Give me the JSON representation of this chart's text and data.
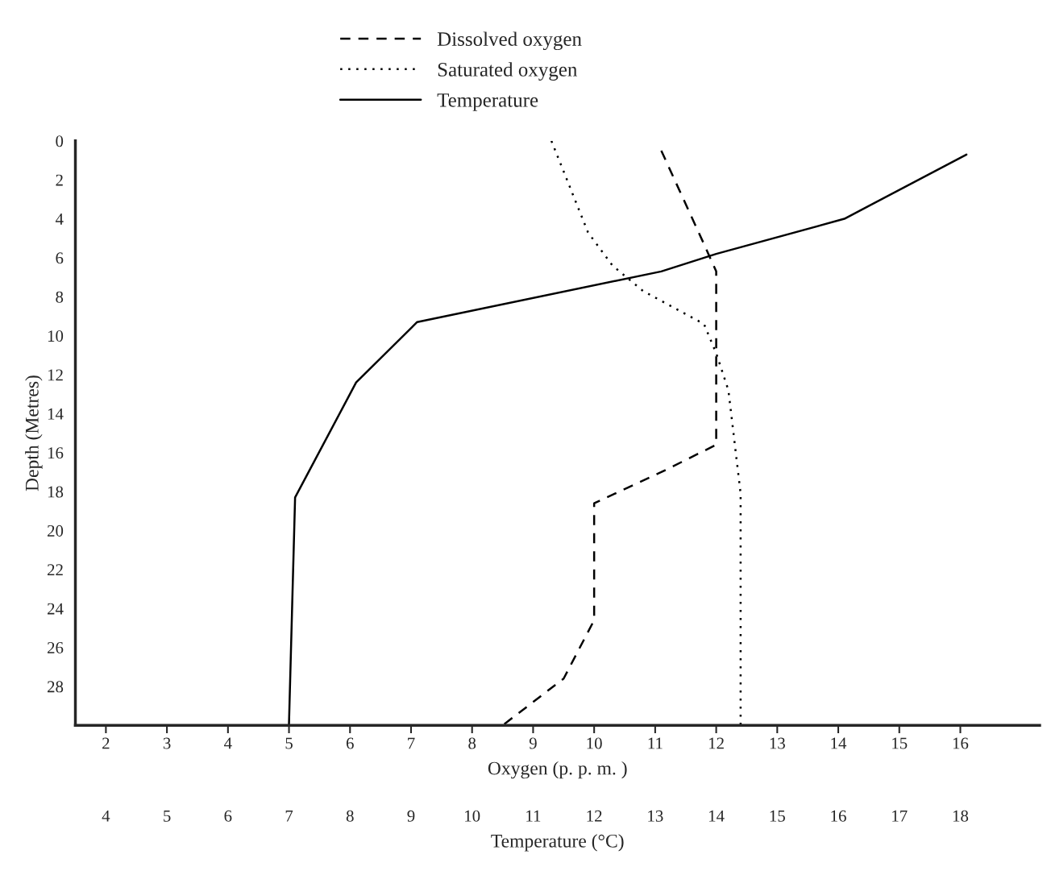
{
  "chart_data": {
    "type": "line",
    "xlabel": "Oxygen (p. p. m. )",
    "x2label": "Temperature (°C)",
    "ylabel": "Depth (Metres)",
    "xlim": [
      1.5,
      17.3
    ],
    "xticks": [
      2,
      3,
      4,
      5,
      6,
      7,
      8,
      9,
      10,
      11,
      12,
      13,
      14,
      15,
      16
    ],
    "x2lim": [
      3.5,
      19.3
    ],
    "x2ticks": [
      4,
      5,
      6,
      7,
      8,
      9,
      10,
      11,
      12,
      13,
      14,
      15,
      16,
      17,
      18
    ],
    "ylim": [
      30,
      0
    ],
    "yticks": [
      0,
      2,
      4,
      6,
      8,
      10,
      12,
      14,
      16,
      18,
      20,
      22,
      24,
      26,
      28
    ],
    "grid": false,
    "legend": "top",
    "marker": "none",
    "series": [
      {
        "name": "Dissolved oxygen",
        "color": "#000000",
        "line_style": "dashed",
        "x": [
          11.1,
          11.8,
          12.0,
          12.0,
          11.1,
          10.0,
          10.0,
          9.5,
          8.5
        ],
        "values": [
          0.5,
          5.3,
          6.7,
          15.6,
          17.0,
          18.6,
          24.6,
          27.6,
          30.0
        ]
      },
      {
        "name": "Saturated oxygen",
        "color": "#000000",
        "line_style": "dotted",
        "x": [
          9.3,
          9.9,
          10.3,
          10.8,
          11.8,
          12.0,
          12.2,
          12.4,
          12.4
        ],
        "values": [
          0.0,
          4.7,
          6.4,
          7.7,
          9.4,
          10.9,
          12.8,
          18.1,
          30.0
        ]
      },
      {
        "name": "Temperature",
        "color": "#000000",
        "line_style": "solid",
        "axis": "x2",
        "x": [
          18.1,
          16.1,
          14.0,
          13.1,
          9.1,
          8.1,
          7.1,
          7.0
        ],
        "values": [
          0.7,
          4.0,
          5.8,
          6.7,
          9.3,
          12.4,
          18.3,
          29.9
        ]
      }
    ]
  }
}
